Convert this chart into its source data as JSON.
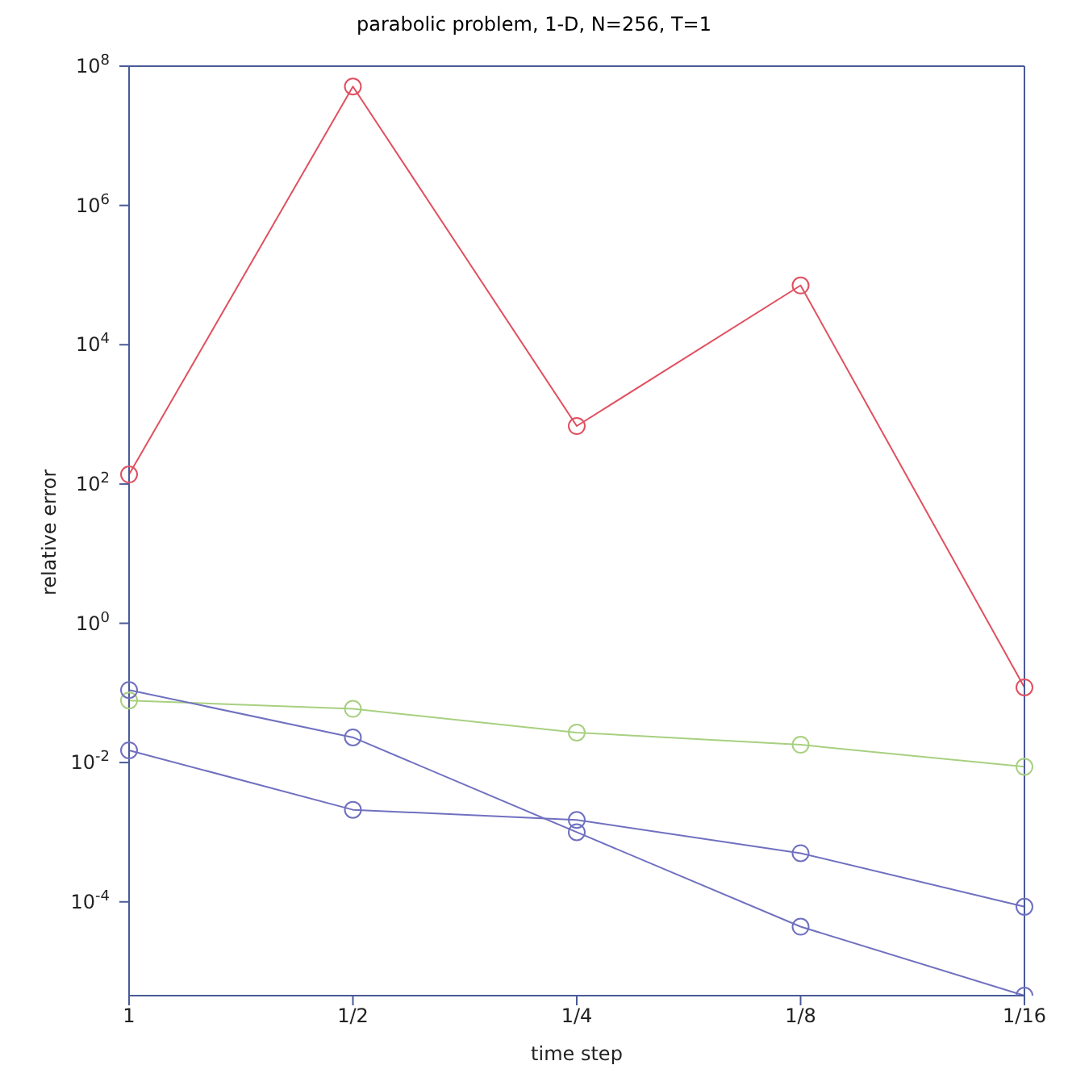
{
  "chart_data": {
    "type": "line",
    "title": "parabolic problem, 1-D, N=256, T=1",
    "xlabel": "time step",
    "ylabel": "relative error",
    "categories": [
      "1",
      "1/2",
      "1/4",
      "1/8",
      "1/16"
    ],
    "series": [
      {
        "color": "#e05060",
        "values": [
          137,
          51000000,
          680,
          71000,
          0.12
        ]
      },
      {
        "color": "#a8d080",
        "values": [
          0.078,
          0.059,
          0.027,
          0.018,
          0.0087
        ]
      },
      {
        "color": "#7070c0",
        "values": [
          0.11,
          0.023,
          0.001,
          4.4e-05,
          4.5e-06
        ]
      },
      {
        "color": "#7070c0",
        "values": [
          0.015,
          0.0021,
          0.0015,
          0.0005,
          8.5e-05
        ]
      }
    ],
    "log": "y",
    "ylim": [
      4.5e-06,
      100000000
    ],
    "yticks": [
      {
        "value": 0.0001,
        "label": "10$^{-4}$"
      },
      {
        "value": 0.01,
        "label": "10$^{-2}$"
      },
      {
        "value": 1,
        "label": "10$^{0}$"
      },
      {
        "value": 100,
        "label": "10$^{2}$"
      },
      {
        "value": 10000,
        "label": "10$^{4}$"
      },
      {
        "value": 1000000,
        "label": "10$^{6}$"
      },
      {
        "value": 100000000,
        "label": "10$^{8}$"
      }
    ],
    "grid": false,
    "legend": false,
    "marker": "circle",
    "line_style": "solid"
  }
}
